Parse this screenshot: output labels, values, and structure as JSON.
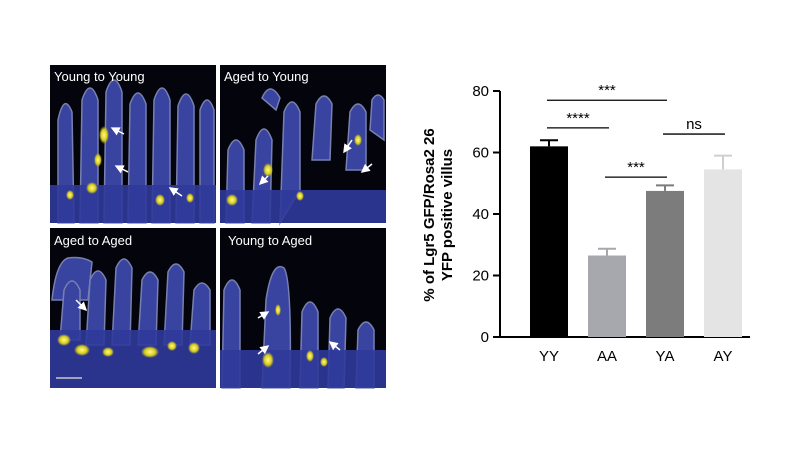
{
  "figure": {
    "panels": [
      {
        "label": "Young to Young"
      },
      {
        "label": "Aged to Young"
      },
      {
        "label": "Aged to Aged"
      },
      {
        "label": "Young to Aged"
      }
    ]
  },
  "chart_data": {
    "type": "bar",
    "categories": [
      "YY",
      "AA",
      "YA",
      "AY"
    ],
    "values": [
      62,
      26.5,
      47.5,
      54.5
    ],
    "errors": [
      2,
      2.2,
      1.8,
      4.5
    ],
    "colors": [
      "#000000",
      "#a7a7ae",
      "#7c7c7c",
      "#e4e4e4"
    ],
    "ylabel_lines": [
      "% of Lgr5 GFP/Rosa2 26",
      "YFP positive villus"
    ],
    "ylim": [
      0,
      80
    ],
    "yticks": [
      "0",
      "20",
      "40",
      "60",
      "80"
    ],
    "significance": [
      {
        "from": 0,
        "to": 2,
        "label": "***",
        "y": 77
      },
      {
        "from": 0,
        "to": 1,
        "label": "****",
        "y": 68
      },
      {
        "from": 1,
        "to": 2,
        "label": "***",
        "y": 52
      },
      {
        "from": 2,
        "to": 3,
        "label": "ns",
        "y": 66
      }
    ]
  }
}
